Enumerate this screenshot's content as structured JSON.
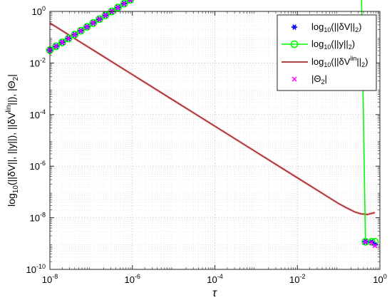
{
  "chart_data": {
    "type": "scatter",
    "xscale": "log",
    "yscale": "log",
    "xlim": [
      1e-08,
      1
    ],
    "ylim": [
      1e-10,
      1
    ],
    "grid": "major-and-minor",
    "legend_position": "top-right",
    "xlabel": "τ",
    "ylabel": {
      "base": "log",
      "sub": "10",
      "body": "(||δV||, ||y||), ||δV",
      "sup": "lin",
      "tail": "||), |Θ",
      "sub2": "2",
      "end": "|"
    },
    "x_ticks": [
      "-8",
      "-6",
      "-4",
      "-2",
      "0"
    ],
    "y_ticks": [
      "-10",
      "-8",
      "-6",
      "-4",
      "-2",
      "0"
    ],
    "tick_base": "10",
    "series": [
      {
        "legend": {
          "pre": "log",
          "sub": "10",
          "mid": "(||δV||",
          "sub2": "2",
          "post": ")"
        },
        "marker": "asterisk",
        "color": "#0000ff",
        "slope": 1,
        "log_x": [
          -8,
          -7.85,
          -7.7,
          -7.55,
          -7.4,
          -7.25,
          -7.1,
          -6.95,
          -6.8,
          -6.65,
          -6.5,
          -6.35,
          -6.2,
          -6.05,
          -5.9,
          -5.75,
          -5.6,
          -5.45,
          -5.3,
          -5.15,
          -5,
          -4.85,
          -4.7,
          -4.55,
          -4.4,
          -4.25,
          -4.1,
          -3.95,
          -3.8,
          -3.65,
          -3.5,
          -3.35,
          -3.2,
          -3.05,
          -2.9,
          -2.75,
          -2.6,
          -2.45,
          -2.3,
          -2.15,
          -2,
          -1.85,
          -1.7,
          -1.55,
          -1.4,
          -1.25,
          -1.1,
          -0.95,
          -0.8,
          -0.65,
          -0.5,
          -0.35,
          -0.2,
          -0.12
        ],
        "log_y_at_x_min": -1.5,
        "log_y_tail": [
          -8.93,
          -8.95,
          -9.05
        ]
      },
      {
        "legend": {
          "pre": "log",
          "sub": "10",
          "mid": "(||y||",
          "sub2": "2",
          "post": ")"
        },
        "marker": "circle",
        "color": "#00ff00",
        "line": true,
        "slope": 1,
        "log_y_at_x_min": -1.5,
        "log_y_tail": [
          -8.93,
          -8.93,
          -8.93
        ]
      },
      {
        "legend": {
          "pre": "log",
          "sub": "10",
          "mid": "(||δV",
          "sup": "lin",
          "mid2": "||",
          "sub2": "2",
          "post": ")"
        },
        "marker": "none",
        "color": "#a52a2a",
        "line": true,
        "log_x": [
          -8,
          -7,
          -6,
          -5,
          -4,
          -3,
          -2,
          -1.5,
          -1,
          -0.8,
          -0.6,
          -0.45,
          -0.3,
          -0.12
        ],
        "log_y": [
          -0.45,
          -1.45,
          -2.45,
          -3.45,
          -4.45,
          -5.45,
          -6.45,
          -6.95,
          -7.45,
          -7.62,
          -7.78,
          -7.85,
          -7.87,
          -7.8
        ]
      },
      {
        "legend": {
          "pre": "|Θ",
          "sub": "2",
          "post": "|"
        },
        "marker": "x",
        "color": "#ff00ff",
        "slope": 1,
        "log_y_at_x_min": -1.5,
        "log_y_tail": [
          -8.93,
          -8.97,
          -9.08
        ]
      }
    ]
  }
}
